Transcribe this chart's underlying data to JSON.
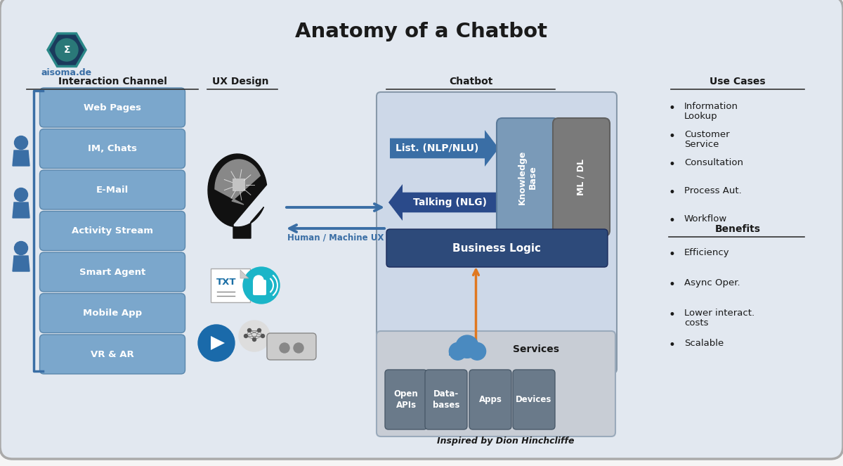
{
  "title": "Anatomy of a Chatbot",
  "subtitle": "aisoma.de",
  "footer": "Inspired by Dion Hinchcliffe",
  "bg_color": "#e2e8f0",
  "outer_bg": "#f5f5f5",
  "interaction_channel_label": "Interaction Channel",
  "ux_design_label": "UX Design",
  "chatbot_label": "Chatbot",
  "use_cases_label": "Use Cases",
  "benefits_label": "Benefits",
  "channel_items": [
    "Web Pages",
    "IM, Chats",
    "E-Mail",
    "Activity Stream",
    "Smart Agent",
    "Mobile App",
    "VR & AR"
  ],
  "channel_box_color": "#7ba7cc",
  "use_cases_items": [
    "Information\nLookup",
    "Customer\nService",
    "Consultation",
    "Process Aut.",
    "Workflow"
  ],
  "benefits_items": [
    "Efficiency",
    "Async Oper.",
    "Lower interact.\ncosts",
    "Scalable"
  ],
  "human_machine_label": "Human / Machine UX",
  "nlp_label": "List. (NLP/NLU)",
  "nlg_label": "Talking (NLG)",
  "knowledge_base_label": "Knowledge\nBase",
  "ml_dl_label": "ML / DL",
  "business_logic_label": "Business Logic",
  "services_label": "Services",
  "service_items": [
    "Open\nAPIs",
    "Data-\nbases",
    "Apps",
    "Devices"
  ],
  "arrow_color": "#3a6ea5",
  "arrow_dark": "#2a5080",
  "orange_color": "#e07820",
  "knowledge_base_color": "#7a9ab8",
  "ml_dl_color": "#7a7a7a",
  "business_logic_color": "#2d4a7a",
  "service_box_color": "#6a7a8a",
  "chatbot_area_bg": "#cdd8e8",
  "chatbot_area_edge": "#8899aa",
  "services_area_bg": "#c8cdd5",
  "services_area_edge": "#9aaabb",
  "main_edge": "#aaaaaa",
  "bracket_color": "#3a6ea5",
  "person_color": "#3a6ea5",
  "header_underline_color": "#333333"
}
